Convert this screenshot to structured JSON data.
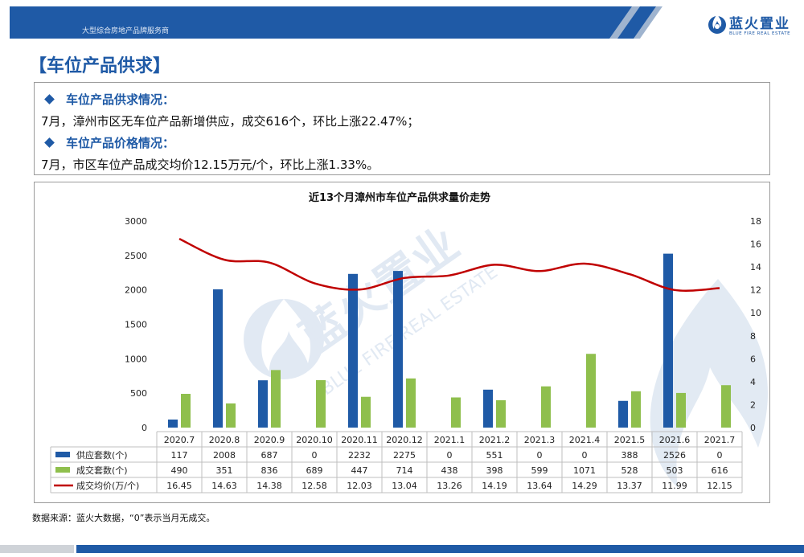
{
  "header": {
    "slogan": "大型综合房地产品牌服务商",
    "brand_name": "蓝火置业",
    "brand_en": "BLUE FIRE REAL ESTATE"
  },
  "page_title": "【车位产品供求】",
  "summary": {
    "supply_head": "车位产品供求情况：",
    "supply_text": "7月，漳州市区无车位产品新增供应，成交616个，环比上涨22.47%；",
    "price_head": "车位产品价格情况：",
    "price_text": "7月，市区车位产品成交均价12.15万元/个，环比上涨1.33%。"
  },
  "watermark": {
    "cn": "蓝火置业",
    "en": "BLUE FIRE REAL ESTATE"
  },
  "colors": {
    "brand_blue": "#1f5aa6",
    "supply": "#1f5aa6",
    "deals": "#8fbf4d",
    "price": "#c00000"
  },
  "chart_data": {
    "type": "bar",
    "title": "近13个月漳州市车位产品供求量价走势",
    "categories": [
      "2020.7",
      "2020.8",
      "2020.9",
      "2020.10",
      "2020.11",
      "2020.12",
      "2021.1",
      "2021.2",
      "2021.3",
      "2021.4",
      "2021.5",
      "2021.6",
      "2021.7"
    ],
    "series": [
      {
        "name": "供应套数(个)",
        "type": "bar",
        "axis": "left",
        "color": "#1f5aa6",
        "values": [
          117,
          2008,
          687,
          0,
          2232,
          2275,
          0,
          551,
          0,
          0,
          388,
          2526,
          0
        ]
      },
      {
        "name": "成交套数(个)",
        "type": "bar",
        "axis": "left",
        "color": "#8fbf4d",
        "values": [
          490,
          351,
          836,
          689,
          447,
          714,
          438,
          398,
          599,
          1071,
          528,
          503,
          616
        ]
      },
      {
        "name": "成交均价(万/个)",
        "type": "line",
        "axis": "right",
        "color": "#c00000",
        "values": [
          16.45,
          14.63,
          14.38,
          12.58,
          12.03,
          13.04,
          13.26,
          14.19,
          13.64,
          14.29,
          13.37,
          11.99,
          12.15
        ]
      }
    ],
    "yleft": {
      "min": 0,
      "max": 3000,
      "ticks": [
        0,
        500,
        1000,
        1500,
        2000,
        2500,
        3000
      ]
    },
    "yright": {
      "min": 0,
      "max": 18,
      "ticks": [
        0,
        2,
        4,
        6,
        8,
        10,
        12,
        14,
        16,
        18
      ]
    },
    "grid": false,
    "legend": "data-table"
  },
  "footnote": "数据来源：蓝火大数据，“0”表示当月无成交。"
}
